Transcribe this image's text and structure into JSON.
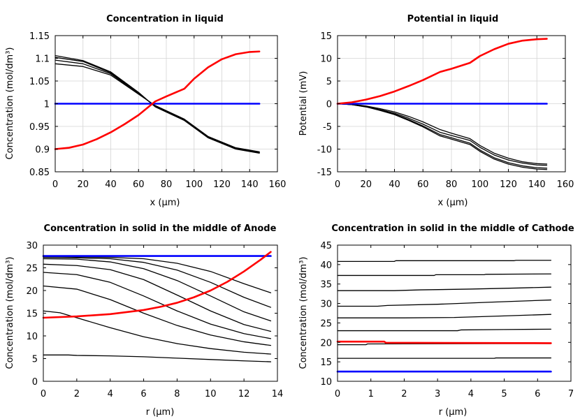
{
  "chart_data": [
    {
      "type": "line",
      "title": "Concentration in liquid",
      "xlabel": "x (µm)",
      "ylabel": "Concentration (mol/dm³)",
      "xlim": [
        0,
        160
      ],
      "ylim": [
        0.85,
        1.15
      ],
      "xticks": [
        0,
        20,
        40,
        60,
        80,
        100,
        120,
        140,
        160
      ],
      "yticks": [
        0.85,
        0.9,
        0.95,
        1,
        1.05,
        1.1,
        1.15
      ],
      "xtick_labels": [
        "0",
        "20",
        "40",
        "60",
        "80",
        "100",
        "120",
        "140",
        "160"
      ],
      "ytick_labels": [
        "0.85",
        "0.9",
        "0.95",
        "1",
        "1.05",
        "1.1",
        "1.15"
      ],
      "grid": true,
      "series": [
        {
          "name": "black-1",
          "color": "#000000",
          "x": [
            0,
            20,
            40,
            60,
            72,
            93,
            110,
            130,
            147
          ],
          "y": [
            1.106,
            1.095,
            1.07,
            1.025,
            0.993,
            0.963,
            0.925,
            0.9,
            0.891
          ]
        },
        {
          "name": "black-2",
          "color": "#000000",
          "x": [
            0,
            20,
            40,
            60,
            72,
            93,
            110,
            130,
            147
          ],
          "y": [
            1.102,
            1.093,
            1.068,
            1.023,
            0.994,
            0.964,
            0.926,
            0.901,
            0.892
          ]
        },
        {
          "name": "black-3",
          "color": "#000000",
          "x": [
            0,
            20,
            40,
            60,
            72,
            93,
            110,
            130,
            147
          ],
          "y": [
            1.096,
            1.088,
            1.066,
            1.022,
            0.995,
            0.965,
            0.927,
            0.902,
            0.893
          ]
        },
        {
          "name": "black-4",
          "color": "#000000",
          "x": [
            0,
            20,
            40,
            60,
            72,
            93,
            110,
            130,
            147
          ],
          "y": [
            1.088,
            1.082,
            1.063,
            1.021,
            0.996,
            0.966,
            0.928,
            0.903,
            0.894
          ]
        },
        {
          "name": "blue",
          "color": "#0000ff",
          "x": [
            0,
            147
          ],
          "y": [
            1.0,
            1.0
          ]
        },
        {
          "name": "red",
          "color": "#ff0000",
          "x": [
            0,
            10,
            20,
            30,
            40,
            50,
            60,
            72,
            80,
            93,
            100,
            110,
            120,
            130,
            140,
            147
          ],
          "y": [
            0.9,
            0.903,
            0.91,
            0.922,
            0.937,
            0.955,
            0.975,
            1.005,
            1.016,
            1.033,
            1.055,
            1.08,
            1.098,
            1.109,
            1.114,
            1.115
          ]
        }
      ]
    },
    {
      "type": "line",
      "title": "Potential in liquid",
      "xlabel": "x (µm)",
      "ylabel": "Potential (mV)",
      "xlim": [
        0,
        160
      ],
      "ylim": [
        -15,
        15
      ],
      "xticks": [
        0,
        20,
        40,
        60,
        80,
        100,
        120,
        140,
        160
      ],
      "yticks": [
        -15,
        -10,
        -5,
        0,
        5,
        10,
        15
      ],
      "xtick_labels": [
        "0",
        "20",
        "40",
        "60",
        "80",
        "100",
        "120",
        "140",
        "160"
      ],
      "ytick_labels": [
        "-15",
        "-10",
        "-5",
        "0",
        "5",
        "10",
        "15"
      ],
      "grid": true,
      "series": [
        {
          "name": "black-1",
          "color": "#000000",
          "x": [
            0,
            10,
            20,
            30,
            40,
            50,
            60,
            72,
            80,
            93,
            100,
            110,
            120,
            130,
            140,
            147
          ],
          "y": [
            0,
            -0.2,
            -0.7,
            -1.4,
            -2.3,
            -3.5,
            -4.9,
            -6.8,
            -7.5,
            -8.7,
            -10.2,
            -11.9,
            -13.0,
            -13.7,
            -14.1,
            -14.2
          ]
        },
        {
          "name": "black-2",
          "color": "#000000",
          "x": [
            0,
            10,
            20,
            30,
            40,
            50,
            60,
            72,
            80,
            93,
            100,
            110,
            120,
            130,
            140,
            147
          ],
          "y": [
            0,
            -0.2,
            -0.7,
            -1.5,
            -2.4,
            -3.7,
            -5.1,
            -7.1,
            -7.8,
            -9.0,
            -10.5,
            -12.2,
            -13.3,
            -14.0,
            -14.4,
            -14.5
          ]
        },
        {
          "name": "black-3",
          "color": "#000000",
          "x": [
            0,
            10,
            20,
            30,
            40,
            50,
            60,
            72,
            80,
            93,
            100,
            110,
            120,
            130,
            140,
            147
          ],
          "y": [
            0,
            -0.2,
            -0.6,
            -1.3,
            -2.1,
            -3.2,
            -4.5,
            -6.3,
            -7.0,
            -8.1,
            -9.6,
            -11.3,
            -12.4,
            -13.1,
            -13.5,
            -13.6
          ]
        },
        {
          "name": "black-4",
          "color": "#000000",
          "x": [
            0,
            10,
            20,
            30,
            40,
            50,
            60,
            72,
            80,
            93,
            100,
            110,
            120,
            130,
            140,
            147
          ],
          "y": [
            0,
            -0.1,
            -0.5,
            -1.1,
            -1.8,
            -2.8,
            -4.0,
            -5.7,
            -6.5,
            -7.7,
            -9.2,
            -10.9,
            -12.0,
            -12.8,
            -13.2,
            -13.3
          ]
        },
        {
          "name": "blue",
          "color": "#0000ff",
          "x": [
            0,
            147
          ],
          "y": [
            0,
            0
          ]
        },
        {
          "name": "red",
          "color": "#ff0000",
          "x": [
            0,
            10,
            20,
            30,
            40,
            50,
            60,
            72,
            80,
            93,
            100,
            110,
            120,
            130,
            140,
            147
          ],
          "y": [
            0,
            0.3,
            0.9,
            1.7,
            2.7,
            3.9,
            5.2,
            7.0,
            7.7,
            9.0,
            10.5,
            12.0,
            13.2,
            13.9,
            14.2,
            14.3
          ]
        }
      ]
    },
    {
      "type": "line",
      "title": "Concentration in solid in the middle of Anode",
      "xlabel": "r (µm)",
      "ylabel": "Concentration (mol/dm³)",
      "xlim": [
        0,
        14
      ],
      "ylim": [
        0,
        30
      ],
      "xticks": [
        0,
        2,
        4,
        6,
        8,
        10,
        12,
        14
      ],
      "yticks": [
        0,
        5,
        10,
        15,
        20,
        25,
        30
      ],
      "xtick_labels": [
        "0",
        "2",
        "4",
        "6",
        "8",
        "10",
        "12",
        "14"
      ],
      "ytick_labels": [
        "0",
        "5",
        "10",
        "15",
        "20",
        "25",
        "30"
      ],
      "grid": false,
      "series": [
        {
          "name": "black-1",
          "color": "#000000",
          "x": [
            0,
            2,
            4,
            6,
            8,
            10,
            12,
            13.6
          ],
          "y": [
            27.5,
            27.4,
            27.3,
            27.0,
            26.0,
            24.2,
            21.5,
            19.5
          ]
        },
        {
          "name": "black-2",
          "color": "#000000",
          "x": [
            0,
            2,
            4,
            6,
            8,
            10,
            12,
            13.6
          ],
          "y": [
            27.3,
            27.2,
            27.0,
            26.2,
            24.5,
            21.8,
            18.5,
            16.3
          ]
        },
        {
          "name": "black-3",
          "color": "#000000",
          "x": [
            0,
            2,
            4,
            6,
            8,
            10,
            12,
            13.6
          ],
          "y": [
            27.0,
            26.9,
            26.3,
            24.8,
            22.2,
            18.8,
            15.3,
            13.3
          ]
        },
        {
          "name": "black-4",
          "color": "#000000",
          "x": [
            0,
            2,
            4,
            6,
            8,
            10,
            12,
            13.6
          ],
          "y": [
            25.8,
            25.5,
            24.6,
            22.4,
            19.0,
            15.5,
            12.5,
            11.0
          ]
        },
        {
          "name": "black-5",
          "color": "#000000",
          "x": [
            0,
            2,
            4,
            6,
            8,
            10,
            12,
            13.6
          ],
          "y": [
            24.0,
            23.5,
            21.8,
            18.8,
            15.5,
            12.6,
            10.5,
            9.4
          ]
        },
        {
          "name": "black-6",
          "color": "#000000",
          "x": [
            0,
            2,
            4,
            6,
            8,
            10,
            12,
            13.6
          ],
          "y": [
            21.0,
            20.3,
            18.0,
            15.0,
            12.3,
            10.2,
            8.7,
            7.9
          ]
        },
        {
          "name": "black-7",
          "color": "#000000",
          "x": [
            0,
            1,
            2,
            4,
            6,
            8,
            10,
            12,
            13.6
          ],
          "y": [
            15.5,
            15.1,
            14.0,
            11.8,
            9.8,
            8.3,
            7.2,
            6.4,
            6.0
          ]
        },
        {
          "name": "black-8",
          "color": "#000000",
          "x": [
            0,
            1.5,
            2,
            4,
            6,
            8,
            10,
            12,
            13.6
          ],
          "y": [
            5.8,
            5.8,
            5.7,
            5.6,
            5.4,
            5.1,
            4.8,
            4.5,
            4.3
          ]
        },
        {
          "name": "blue",
          "color": "#0000ff",
          "x": [
            0,
            13.6
          ],
          "y": [
            27.6,
            27.6
          ]
        },
        {
          "name": "red",
          "color": "#ff0000",
          "x": [
            0,
            2,
            4,
            6,
            7,
            8,
            9,
            10,
            11,
            12,
            13,
            13.6
          ],
          "y": [
            14.0,
            14.3,
            14.8,
            15.7,
            16.4,
            17.3,
            18.5,
            20.0,
            21.9,
            24.2,
            26.8,
            28.5
          ]
        }
      ]
    },
    {
      "type": "line",
      "title": "Concentration in solid in the middle of Cathode",
      "xlabel": "r (µm)",
      "ylabel": "Concentration (mol/dm³)",
      "xlim": [
        0,
        7
      ],
      "ylim": [
        10,
        45
      ],
      "xticks": [
        0,
        1,
        2,
        3,
        4,
        5,
        6,
        7
      ],
      "yticks": [
        10,
        15,
        20,
        25,
        30,
        35,
        40,
        45
      ],
      "xtick_labels": [
        "0",
        "1",
        "2",
        "3",
        "4",
        "5",
        "6",
        "7"
      ],
      "ytick_labels": [
        "10",
        "15",
        "20",
        "25",
        "30",
        "35",
        "40",
        "45"
      ],
      "grid": false,
      "series": [
        {
          "name": "black-1",
          "color": "#000000",
          "x": [
            0,
            1.7,
            1.75,
            5.3,
            5.35,
            6.4
          ],
          "y": [
            40.8,
            40.8,
            41.0,
            41.0,
            41.1,
            41.1
          ]
        },
        {
          "name": "black-2",
          "color": "#000000",
          "x": [
            0,
            2.9,
            2.95,
            4.4,
            4.45,
            6.4
          ],
          "y": [
            37.2,
            37.2,
            37.4,
            37.4,
            37.5,
            37.6
          ]
        },
        {
          "name": "black-3",
          "color": "#000000",
          "x": [
            0,
            1.7,
            2.5,
            4.0,
            5.5,
            6.4
          ],
          "y": [
            33.3,
            33.3,
            33.5,
            33.7,
            34.0,
            34.2
          ]
        },
        {
          "name": "black-4",
          "color": "#000000",
          "x": [
            0,
            1.2,
            1.5,
            3.0,
            4.5,
            6.4
          ],
          "y": [
            29.3,
            29.3,
            29.5,
            29.8,
            30.3,
            30.9
          ]
        },
        {
          "name": "black-5",
          "color": "#000000",
          "x": [
            0,
            2.0,
            3.5,
            5.0,
            6.4
          ],
          "y": [
            26.3,
            26.3,
            26.4,
            26.8,
            27.2
          ]
        },
        {
          "name": "black-6",
          "color": "#000000",
          "x": [
            0,
            3.6,
            3.7,
            5.0,
            6.4
          ],
          "y": [
            23.0,
            23.0,
            23.2,
            23.3,
            23.4
          ]
        },
        {
          "name": "black-7",
          "color": "#000000",
          "x": [
            0,
            0.85,
            0.9,
            6.4
          ],
          "y": [
            19.4,
            19.4,
            19.6,
            19.7
          ]
        },
        {
          "name": "black-8",
          "color": "#000000",
          "x": [
            0,
            4.7,
            4.75,
            6.4
          ],
          "y": [
            15.9,
            15.9,
            16.0,
            16.0
          ]
        },
        {
          "name": "blue",
          "color": "#0000ff",
          "x": [
            0,
            6.4
          ],
          "y": [
            12.5,
            12.5
          ]
        },
        {
          "name": "red",
          "color": "#ff0000",
          "x": [
            0,
            1.4,
            1.45,
            6.4
          ],
          "y": [
            20.2,
            20.2,
            19.9,
            19.8
          ]
        }
      ]
    }
  ]
}
